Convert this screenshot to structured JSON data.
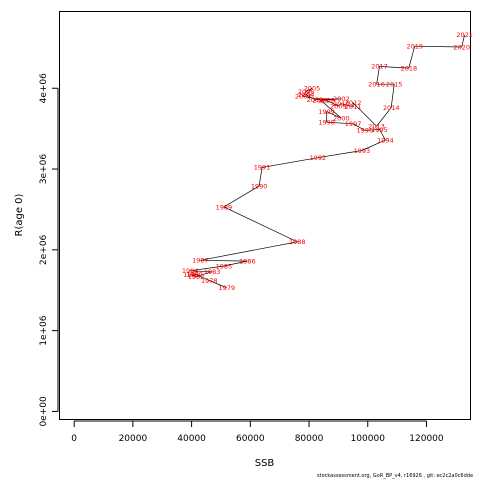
{
  "chart_data": {
    "type": "line",
    "xlabel": "SSB",
    "ylabel": "R(age 0)",
    "xlim": [
      -5000,
      135000
    ],
    "ylim": [
      -100000,
      4950000
    ],
    "x_ticks": [
      0,
      20000,
      40000,
      60000,
      80000,
      100000,
      120000
    ],
    "x_tick_labels": [
      "0",
      "20000",
      "40000",
      "60000",
      "80000",
      "100000",
      "120000"
    ],
    "y_ticks": [
      0,
      1000000,
      2000000,
      3000000,
      4000000
    ],
    "y_tick_labels": [
      "0e+00",
      "1e+06",
      "2e+06",
      "3e+06",
      "4e+06"
    ],
    "line_color": "#000000",
    "label_color": "#ff0000",
    "points": [
      {
        "year": "1978",
        "x": 46000,
        "y": 1620000
      },
      {
        "year": "1979",
        "x": 52000,
        "y": 1530000
      },
      {
        "year": "1980",
        "x": 41000,
        "y": 1700000
      },
      {
        "year": "1981",
        "x": 40000,
        "y": 1690000
      },
      {
        "year": "1982",
        "x": 41500,
        "y": 1670000
      },
      {
        "year": "1983",
        "x": 47000,
        "y": 1730000
      },
      {
        "year": "1984",
        "x": 39500,
        "y": 1740000
      },
      {
        "year": "1985",
        "x": 51000,
        "y": 1800000
      },
      {
        "year": "1986",
        "x": 59000,
        "y": 1860000
      },
      {
        "year": "1987",
        "x": 43000,
        "y": 1870000
      },
      {
        "year": "1988",
        "x": 76000,
        "y": 2100000
      },
      {
        "year": "1989",
        "x": 51000,
        "y": 2530000
      },
      {
        "year": "1990",
        "x": 63000,
        "y": 2790000
      },
      {
        "year": "1991",
        "x": 64000,
        "y": 3020000
      },
      {
        "year": "1992",
        "x": 83000,
        "y": 3140000
      },
      {
        "year": "1993",
        "x": 98000,
        "y": 3230000
      },
      {
        "year": "1994",
        "x": 106000,
        "y": 3360000
      },
      {
        "year": "1995",
        "x": 104000,
        "y": 3490000
      },
      {
        "year": "1996",
        "x": 99000,
        "y": 3480000
      },
      {
        "year": "1997",
        "x": 95000,
        "y": 3560000
      },
      {
        "year": "1998",
        "x": 86000,
        "y": 3580000
      },
      {
        "year": "1999",
        "x": 86000,
        "y": 3710000
      },
      {
        "year": "2000",
        "x": 91000,
        "y": 3630000
      },
      {
        "year": "2001",
        "x": 84000,
        "y": 3850000
      },
      {
        "year": "2002",
        "x": 91000,
        "y": 3870000
      },
      {
        "year": "2003",
        "x": 82000,
        "y": 3860000
      },
      {
        "year": "2004",
        "x": 79000,
        "y": 3920000
      },
      {
        "year": "2005",
        "x": 81000,
        "y": 4000000
      },
      {
        "year": "2006",
        "x": 79000,
        "y": 3960000
      },
      {
        "year": "2007",
        "x": 78000,
        "y": 3900000
      },
      {
        "year": "2008",
        "x": 86000,
        "y": 3850000
      },
      {
        "year": "2009",
        "x": 90000,
        "y": 3780000
      },
      {
        "year": "2010",
        "x": 91000,
        "y": 3810000
      },
      {
        "year": "2011",
        "x": 95000,
        "y": 3770000
      },
      {
        "year": "2012",
        "x": 95000,
        "y": 3820000
      },
      {
        "year": "2013",
        "x": 103000,
        "y": 3530000
      },
      {
        "year": "2014",
        "x": 108000,
        "y": 3760000
      },
      {
        "year": "2015",
        "x": 109000,
        "y": 4050000
      },
      {
        "year": "2016",
        "x": 103000,
        "y": 4050000
      },
      {
        "year": "2017",
        "x": 104000,
        "y": 4270000
      },
      {
        "year": "2018",
        "x": 114000,
        "y": 4250000
      },
      {
        "year": "2019",
        "x": 116000,
        "y": 4520000
      },
      {
        "year": "2020",
        "x": 132000,
        "y": 4510000
      },
      {
        "year": "2021",
        "x": 133000,
        "y": 4660000
      }
    ]
  },
  "footer_text": "stockassessment.org,  GoR_BP_v4,  r16926 ,  git:  ec2c2a0c6dde"
}
